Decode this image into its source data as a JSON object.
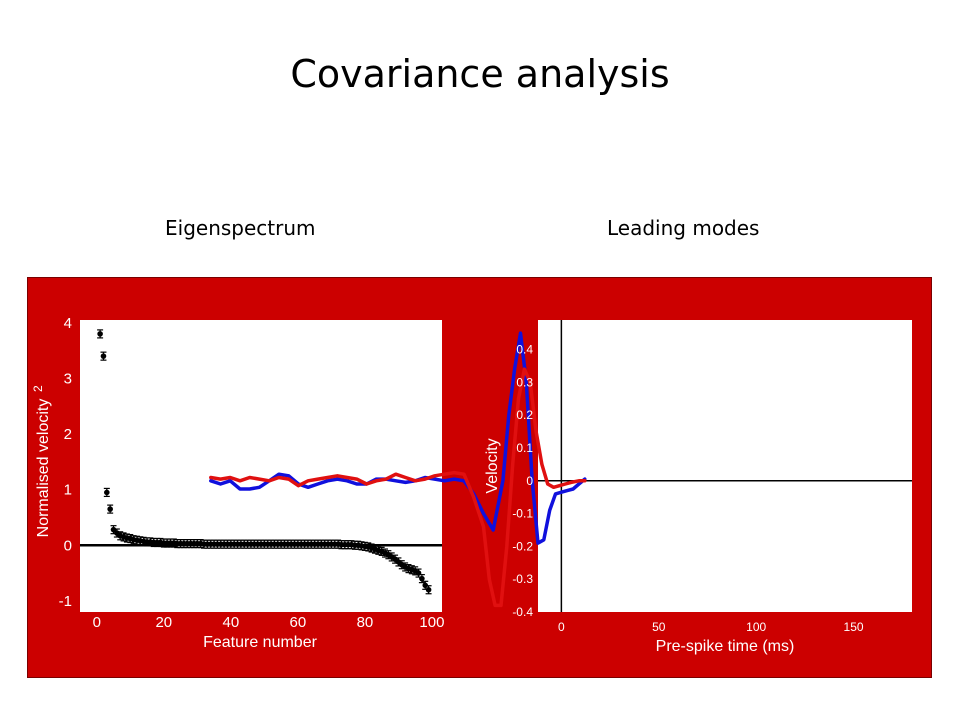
{
  "slide": {
    "title": "Covariance analysis"
  },
  "panels": {
    "left_title": "Eigenspectrum",
    "right_title": "Leading modes"
  },
  "colors": {
    "background": "#cc0000",
    "plot_area": "#ffffff",
    "mode_1": "#1010dd",
    "mode_2": "#e01010",
    "points": "#000000",
    "axis_text": "#ffffff"
  },
  "chart_data": [
    {
      "type": "scatter",
      "xlabel": "Feature number",
      "ylabel": "Normalised velocity",
      "ylabel_superscript": "2",
      "xlim": [
        -5,
        103
      ],
      "ylim": [
        -1.2,
        4.05
      ],
      "xticks": [
        "0",
        "20",
        "40",
        "60",
        "80",
        "100"
      ],
      "yticks": [
        "-1",
        "0",
        "1",
        "2",
        "3",
        "4"
      ],
      "grid": false,
      "zero_line": true,
      "error_bars": true,
      "points": [
        [
          1,
          3.8
        ],
        [
          2,
          3.4
        ],
        [
          3,
          0.95
        ],
        [
          4,
          0.65
        ],
        [
          5,
          0.28
        ],
        [
          6,
          0.22
        ],
        [
          7,
          0.17
        ],
        [
          8,
          0.15
        ],
        [
          9,
          0.13
        ],
        [
          10,
          0.12
        ],
        [
          11,
          0.1
        ],
        [
          12,
          0.09
        ],
        [
          13,
          0.08
        ],
        [
          14,
          0.07
        ],
        [
          15,
          0.06
        ],
        [
          16,
          0.06
        ],
        [
          17,
          0.05
        ],
        [
          18,
          0.05
        ],
        [
          19,
          0.05
        ],
        [
          20,
          0.04
        ],
        [
          21,
          0.04
        ],
        [
          22,
          0.04
        ],
        [
          23,
          0.04
        ],
        [
          24,
          0.03
        ],
        [
          25,
          0.03
        ],
        [
          26,
          0.03
        ],
        [
          27,
          0.03
        ],
        [
          28,
          0.03
        ],
        [
          29,
          0.03
        ],
        [
          30,
          0.03
        ],
        [
          31,
          0.03
        ],
        [
          32,
          0.02
        ],
        [
          33,
          0.02
        ],
        [
          34,
          0.02
        ],
        [
          35,
          0.02
        ],
        [
          36,
          0.02
        ],
        [
          37,
          0.02
        ],
        [
          38,
          0.02
        ],
        [
          39,
          0.02
        ],
        [
          40,
          0.02
        ],
        [
          41,
          0.02
        ],
        [
          42,
          0.02
        ],
        [
          43,
          0.02
        ],
        [
          44,
          0.02
        ],
        [
          45,
          0.02
        ],
        [
          46,
          0.02
        ],
        [
          47,
          0.02
        ],
        [
          48,
          0.02
        ],
        [
          49,
          0.02
        ],
        [
          50,
          0.02
        ],
        [
          51,
          0.02
        ],
        [
          52,
          0.02
        ],
        [
          53,
          0.02
        ],
        [
          54,
          0.02
        ],
        [
          55,
          0.02
        ],
        [
          56,
          0.02
        ],
        [
          57,
          0.02
        ],
        [
          58,
          0.02
        ],
        [
          59,
          0.02
        ],
        [
          60,
          0.02
        ],
        [
          61,
          0.02
        ],
        [
          62,
          0.02
        ],
        [
          63,
          0.02
        ],
        [
          64,
          0.02
        ],
        [
          65,
          0.02
        ],
        [
          66,
          0.02
        ],
        [
          67,
          0.02
        ],
        [
          68,
          0.02
        ],
        [
          69,
          0.02
        ],
        [
          70,
          0.02
        ],
        [
          71,
          0.02
        ],
        [
          72,
          0.02
        ],
        [
          73,
          0.01
        ],
        [
          74,
          0.01
        ],
        [
          75,
          0.01
        ],
        [
          76,
          0.01
        ],
        [
          77,
          0.0
        ],
        [
          78,
          0.0
        ],
        [
          79,
          -0.01
        ],
        [
          80,
          -0.02
        ],
        [
          81,
          -0.03
        ],
        [
          82,
          -0.05
        ],
        [
          83,
          -0.07
        ],
        [
          84,
          -0.09
        ],
        [
          85,
          -0.11
        ],
        [
          86,
          -0.14
        ],
        [
          87,
          -0.17
        ],
        [
          88,
          -0.21
        ],
        [
          89,
          -0.25
        ],
        [
          90,
          -0.3
        ],
        [
          91,
          -0.35
        ],
        [
          92,
          -0.39
        ],
        [
          93,
          -0.42
        ],
        [
          94,
          -0.44
        ],
        [
          95,
          -0.46
        ],
        [
          96,
          -0.5
        ],
        [
          97,
          -0.6
        ],
        [
          98,
          -0.72
        ],
        [
          99,
          -0.8
        ]
      ]
    },
    {
      "type": "line",
      "xlabel": "Pre-spike time (ms)",
      "ylabel": "Velocity",
      "xlim": [
        -180,
        12
      ],
      "ylim": [
        -0.4,
        0.49
      ],
      "x_axis_reversed": true,
      "xticks": [
        "150",
        "100",
        "50",
        "0"
      ],
      "yticks": [
        "0.4",
        "0.3",
        "0.2",
        "0.1",
        "0",
        "-0.1",
        "-0.2",
        "-0.3",
        "-0.4"
      ],
      "grid": false,
      "zero_line": true,
      "vertical_line_at": 0,
      "series": [
        {
          "color": "#1010dd",
          "x": [
            -180,
            -175,
            -170,
            -165,
            -160,
            -155,
            -150,
            -145,
            -140,
            -135,
            -130,
            -125,
            -120,
            -115,
            -110,
            -105,
            -100,
            -95,
            -90,
            -85,
            -80,
            -75,
            -70,
            -65,
            -60,
            -55,
            -50,
            -45,
            -40,
            -35,
            -30,
            -27,
            -24,
            -21,
            -18,
            -15,
            -12,
            -9,
            -6,
            -3,
            0,
            3,
            6,
            9,
            12
          ],
          "y": [
            0.0,
            -0.01,
            0.0,
            -0.025,
            -0.025,
            -0.02,
            0.0,
            0.02,
            0.015,
            -0.01,
            -0.02,
            -0.01,
            0.0,
            0.005,
            0.0,
            -0.01,
            -0.01,
            0.005,
            0.005,
            0.0,
            -0.005,
            0.0,
            0.01,
            0.005,
            0.0,
            0.005,
            0.0,
            -0.04,
            -0.1,
            -0.15,
            0.0,
            0.2,
            0.34,
            0.45,
            0.3,
            0.0,
            -0.19,
            -0.18,
            -0.09,
            -0.04,
            -0.035,
            -0.03,
            -0.025,
            -0.01,
            0.005
          ]
        },
        {
          "color": "#e01010",
          "x": [
            -180,
            -175,
            -170,
            -165,
            -160,
            -155,
            -150,
            -145,
            -140,
            -135,
            -130,
            -125,
            -120,
            -115,
            -110,
            -105,
            -100,
            -95,
            -90,
            -85,
            -80,
            -75,
            -70,
            -65,
            -60,
            -55,
            -50,
            -45,
            -40,
            -37,
            -34,
            -31,
            -28,
            -25,
            -22,
            -19,
            -16,
            -13,
            -10,
            -7,
            -4,
            -1,
            2,
            5,
            9,
            12
          ],
          "y": [
            0.01,
            0.005,
            0.01,
            0.0,
            0.01,
            0.005,
            0.0,
            0.01,
            0.005,
            -0.015,
            0.0,
            0.005,
            0.01,
            0.015,
            0.01,
            0.005,
            -0.01,
            0.0,
            0.005,
            0.02,
            0.01,
            0.0,
            0.005,
            0.015,
            0.02,
            0.025,
            0.02,
            -0.05,
            -0.14,
            -0.3,
            -0.38,
            -0.38,
            -0.2,
            0.05,
            0.25,
            0.34,
            0.3,
            0.15,
            0.05,
            -0.01,
            -0.02,
            -0.015,
            -0.01,
            -0.005,
            0.0,
            0.0
          ]
        }
      ]
    }
  ]
}
